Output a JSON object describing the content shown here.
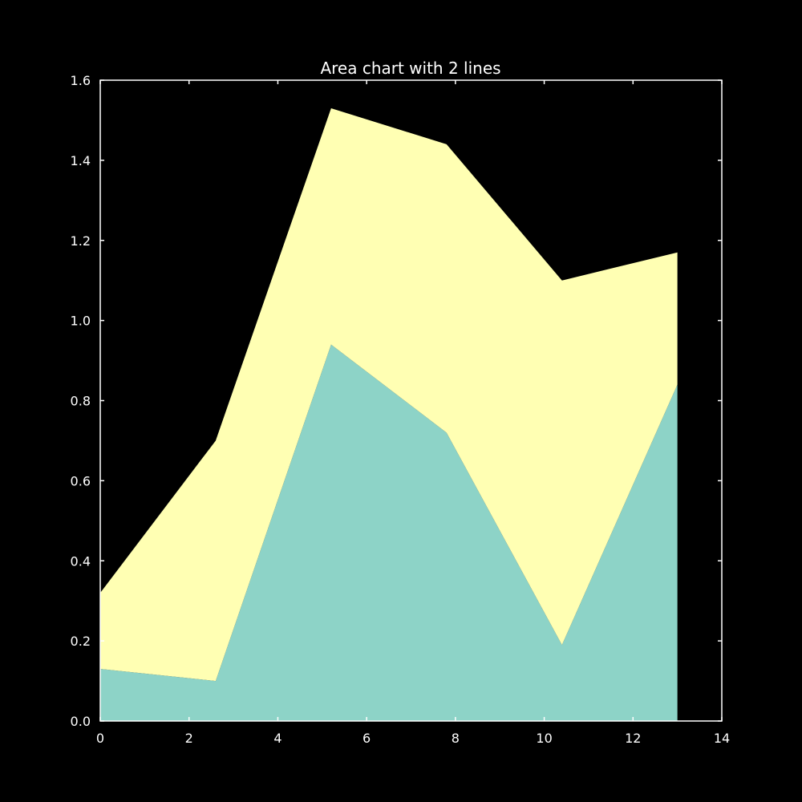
{
  "chart_data": {
    "type": "area",
    "stacked": true,
    "title": "Area chart with 2 lines",
    "xlabel": "",
    "ylabel": "",
    "xlim": [
      0,
      14
    ],
    "ylim": [
      0,
      1.6
    ],
    "x_ticks": [
      "0",
      "2",
      "4",
      "6",
      "8",
      "10",
      "12",
      "14"
    ],
    "y_ticks": [
      "0.0",
      "0.2",
      "0.4",
      "0.6",
      "0.8",
      "1.0",
      "1.2",
      "1.4",
      "1.6"
    ],
    "x": [
      0,
      2.6,
      5.2,
      7.8,
      10.4,
      13.0
    ],
    "series": [
      {
        "values": [
          0.13,
          0.1,
          0.94,
          0.72,
          0.19,
          0.84
        ],
        "color": "#8dd3c7"
      },
      {
        "values": [
          0.19,
          0.6,
          0.59,
          0.72,
          0.91,
          0.33
        ],
        "color": "#ffffb3"
      }
    ],
    "grid": false,
    "background": "#000000",
    "axis_color": "#ffffff"
  }
}
